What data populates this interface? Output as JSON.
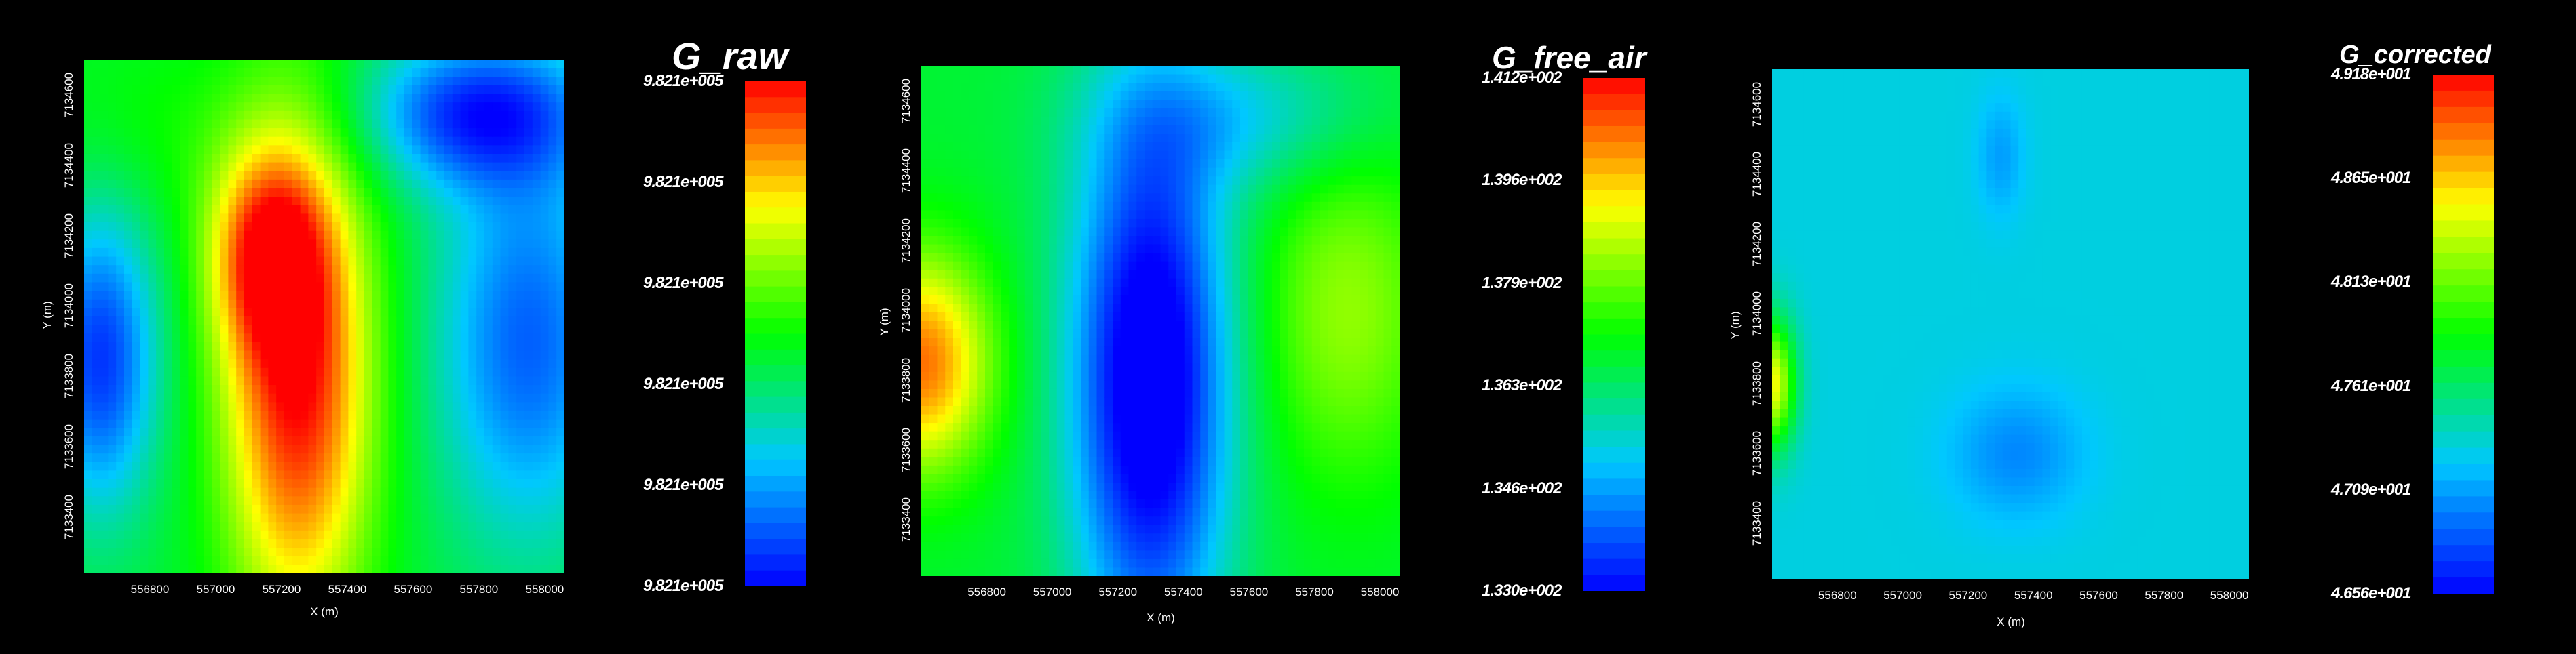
{
  "chart_data": [
    {
      "type": "heatmap",
      "title": "G_raw",
      "xlabel": "X (m)",
      "ylabel": "Y (m)",
      "x_ticks": [
        "556800",
        "557000",
        "557200",
        "557400",
        "557600",
        "557800",
        "558000"
      ],
      "y_ticks": [
        "7133400",
        "7133600",
        "7133800",
        "7134000",
        "7134200",
        "7134400",
        "7134600"
      ],
      "xlim": [
        556600,
        558060
      ],
      "ylim": [
        7133240,
        7134700
      ],
      "colorbar_labels": [
        "9.821e+005",
        "9.821e+005",
        "9.821e+005",
        "9.821e+005",
        "9.821e+005",
        "9.821e+005"
      ],
      "blobs": [
        {
          "x": 557250,
          "y": 7133800,
          "sx": 160,
          "sy": 500,
          "v": 1.0
        },
        {
          "x": 557150,
          "y": 7134150,
          "sx": 120,
          "sy": 200,
          "v": 0.6
        },
        {
          "x": 556650,
          "y": 7133850,
          "sx": 120,
          "sy": 300,
          "v": -0.7
        },
        {
          "x": 557950,
          "y": 7133900,
          "sx": 200,
          "sy": 400,
          "v": -0.6
        },
        {
          "x": 557800,
          "y": 7134550,
          "sx": 250,
          "sy": 150,
          "v": -0.7
        },
        {
          "x": 556800,
          "y": 7134500,
          "sx": 250,
          "sy": 200,
          "v": 0.1
        }
      ],
      "base": 0.45
    },
    {
      "type": "heatmap",
      "title": "G_free_air",
      "xlabel": "X (m)",
      "ylabel": "Y (m)",
      "x_ticks": [
        "556800",
        "557000",
        "557200",
        "557400",
        "557600",
        "557800",
        "558000"
      ],
      "y_ticks": [
        "7133400",
        "7133600",
        "7133800",
        "7134000",
        "7134200",
        "7134400",
        "7134600"
      ],
      "xlim": [
        556600,
        558060
      ],
      "ylim": [
        7133240,
        7134700
      ],
      "colorbar_labels": [
        "1.412e+002",
        "1.396e+002",
        "1.379e+002",
        "1.363e+002",
        "1.346e+002",
        "1.330e+002"
      ],
      "blobs": [
        {
          "x": 557300,
          "y": 7133800,
          "sx": 170,
          "sy": 550,
          "v": -1.0
        },
        {
          "x": 556600,
          "y": 7133850,
          "sx": 150,
          "sy": 220,
          "v": 0.8
        },
        {
          "x": 557900,
          "y": 7134000,
          "sx": 200,
          "sy": 350,
          "v": 0.35
        },
        {
          "x": 557600,
          "y": 7134550,
          "sx": 300,
          "sy": 150,
          "v": -0.3
        }
      ],
      "base": 0.45
    },
    {
      "type": "heatmap",
      "title": "G_corrected",
      "xlabel": "X (m)",
      "ylabel": "Y (m)",
      "x_ticks": [
        "556800",
        "557000",
        "557200",
        "557400",
        "557600",
        "557800",
        "558000"
      ],
      "y_ticks": [
        "7133400",
        "7133600",
        "7133800",
        "7134000",
        "7134200",
        "7134400",
        "7134600"
      ],
      "xlim": [
        556600,
        558060
      ],
      "ylim": [
        7133240,
        7134700
      ],
      "colorbar_labels": [
        "4.918e+001",
        "4.865e+001",
        "4.813e+001",
        "4.761e+001",
        "4.709e+001",
        "4.656e+001"
      ],
      "blobs": [
        {
          "x": 556600,
          "y": 7133800,
          "sx": 50,
          "sy": 130,
          "v": 0.85
        },
        {
          "x": 557350,
          "y": 7133600,
          "sx": 140,
          "sy": 130,
          "v": -0.2
        },
        {
          "x": 557300,
          "y": 7134450,
          "sx": 50,
          "sy": 120,
          "v": -0.15
        }
      ],
      "base": 0.28
    }
  ]
}
